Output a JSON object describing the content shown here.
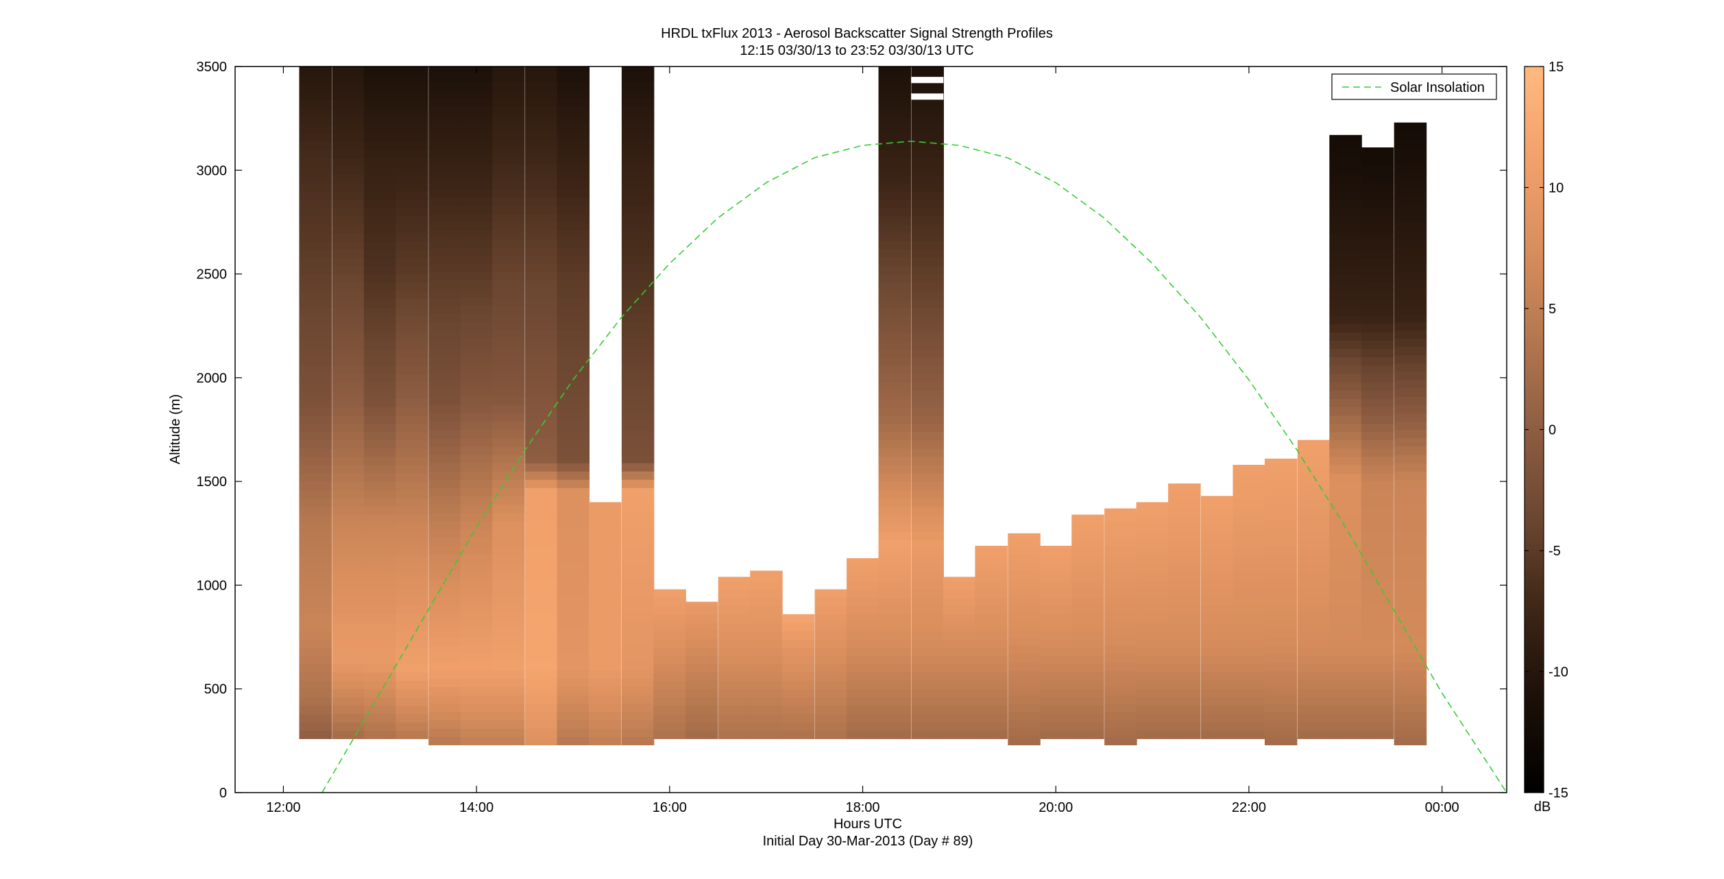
{
  "figure": {
    "title_line1": "HRDL txFlux 2013 - Aerosol Backscatter Signal Strength Profiles",
    "title_line2": "12:15 03/30/13 to 23:52 03/30/13  UTC",
    "xlabel": "Hours UTC",
    "xlabel_line2": "Initial Day 30-Mar-2013 (Day # 89)",
    "ylabel": "Altitude (m)",
    "legend_label": "Solar Insolation",
    "colorbar_unit": "dB"
  },
  "chart_data": {
    "type": "heatmap",
    "x_unit": "hours UTC (30-Mar-2013; values above 24 are after midnight)",
    "xlim": [
      11.5,
      24.67
    ],
    "ylim": [
      0,
      3500
    ],
    "xticks": [
      12,
      14,
      16,
      18,
      20,
      22,
      24
    ],
    "xtick_labels": [
      "12:00",
      "14:00",
      "16:00",
      "18:00",
      "20:00",
      "22:00",
      "00:00"
    ],
    "yticks": [
      0,
      500,
      1000,
      1500,
      2000,
      2500,
      3000,
      3500
    ],
    "ytick_labels": [
      "0",
      "500",
      "1000",
      "1500",
      "2000",
      "2500",
      "3000",
      "3500"
    ],
    "color_range": [
      -15,
      15
    ],
    "colorbar_ticks": [
      -15,
      -10,
      -5,
      0,
      5,
      10,
      15
    ],
    "colorbar_tick_labels": [
      "-15",
      "-10",
      "-5",
      "0",
      "5",
      "10",
      "15"
    ],
    "colormap": [
      "#000000",
      "#1a0f08",
      "#3d2516",
      "#6b4630",
      "#8e5d42",
      "#b4774f",
      "#d98e5d",
      "#f2a16b",
      "#ffb97e"
    ],
    "profile_width_hours": 0.333,
    "profiles": [
      {
        "time": 12.33,
        "top": 3500,
        "bottom": 260,
        "signal_db": [
          [
            260,
            0
          ],
          [
            450,
            3
          ],
          [
            800,
            6
          ],
          [
            1300,
            4
          ],
          [
            1900,
            -2
          ],
          [
            2600,
            -5
          ],
          [
            3100,
            -7
          ],
          [
            3500,
            -10
          ]
        ]
      },
      {
        "time": 12.67,
        "top": 3500,
        "bottom": 260,
        "signal_db": [
          [
            260,
            2
          ],
          [
            650,
            10
          ],
          [
            1300,
            6
          ],
          [
            1900,
            0
          ],
          [
            2500,
            -4
          ],
          [
            3000,
            -7
          ],
          [
            3500,
            -10
          ]
        ]
      },
      {
        "time": 13.0,
        "top": 3500,
        "bottom": 260,
        "signal_db": [
          [
            260,
            3
          ],
          [
            650,
            10
          ],
          [
            1300,
            6
          ],
          [
            1900,
            -2
          ],
          [
            2500,
            -6
          ],
          [
            3000,
            -8
          ],
          [
            3500,
            -11
          ]
        ]
      },
      {
        "time": 13.33,
        "top": 3500,
        "bottom": 260,
        "signal_db": [
          [
            260,
            4
          ],
          [
            600,
            11
          ],
          [
            1300,
            6
          ],
          [
            1900,
            0
          ],
          [
            2500,
            -5
          ],
          [
            3000,
            -8
          ],
          [
            3500,
            -11
          ]
        ]
      },
      {
        "time": 13.67,
        "top": 3500,
        "bottom": 230,
        "signal_db": [
          [
            230,
            4
          ],
          [
            600,
            11
          ],
          [
            1300,
            5
          ],
          [
            1900,
            -2
          ],
          [
            2500,
            -5
          ],
          [
            3000,
            -8
          ],
          [
            3500,
            -11
          ]
        ]
      },
      {
        "time": 14.0,
        "top": 3500,
        "bottom": 230,
        "signal_db": [
          [
            230,
            5
          ],
          [
            600,
            11
          ],
          [
            1300,
            6
          ],
          [
            1900,
            -1
          ],
          [
            2500,
            -5
          ],
          [
            3000,
            -8
          ],
          [
            3500,
            -11
          ]
        ]
      },
      {
        "time": 14.33,
        "top": 3500,
        "bottom": 230,
        "signal_db": [
          [
            230,
            5
          ],
          [
            600,
            11
          ],
          [
            1300,
            8
          ],
          [
            1900,
            -1
          ],
          [
            2500,
            -4
          ],
          [
            3000,
            -7
          ],
          [
            3500,
            -10
          ]
        ]
      },
      {
        "time": 14.67,
        "top": 3500,
        "bottom": 230,
        "signal_db": [
          [
            230,
            8
          ],
          [
            600,
            12
          ],
          [
            1450,
            11
          ],
          [
            1600,
            0
          ],
          [
            2500,
            -4
          ],
          [
            3000,
            -7
          ],
          [
            3500,
            -10
          ]
        ]
      },
      {
        "time": 15.0,
        "top": 3500,
        "bottom": 230,
        "signal_db": [
          [
            230,
            4
          ],
          [
            600,
            9
          ],
          [
            1450,
            8
          ],
          [
            1600,
            -2
          ],
          [
            2500,
            -5
          ],
          [
            3000,
            -8
          ],
          [
            3500,
            -11
          ]
        ]
      },
      {
        "time": 15.33,
        "top": 1400,
        "bottom": 230,
        "signal_db": [
          [
            230,
            5
          ],
          [
            600,
            10
          ],
          [
            1400,
            10
          ]
        ]
      },
      {
        "time": 15.67,
        "top": 3500,
        "bottom": 230,
        "signal_db": [
          [
            230,
            4
          ],
          [
            600,
            9
          ],
          [
            1450,
            11
          ],
          [
            1600,
            -2
          ],
          [
            2500,
            -6
          ],
          [
            3000,
            -8
          ],
          [
            3500,
            -11
          ]
        ]
      },
      {
        "time": 16.0,
        "top": 980,
        "bottom": 260,
        "signal_db": [
          [
            260,
            3
          ],
          [
            700,
            8
          ],
          [
            980,
            11
          ]
        ]
      },
      {
        "time": 16.33,
        "top": 920,
        "bottom": 260,
        "signal_db": [
          [
            260,
            2
          ],
          [
            700,
            7
          ],
          [
            920,
            10
          ]
        ]
      },
      {
        "time": 16.67,
        "top": 1040,
        "bottom": 260,
        "signal_db": [
          [
            260,
            3
          ],
          [
            700,
            8
          ],
          [
            1040,
            11
          ]
        ]
      },
      {
        "time": 17.0,
        "top": 1070,
        "bottom": 260,
        "signal_db": [
          [
            260,
            3
          ],
          [
            700,
            8
          ],
          [
            1070,
            11
          ]
        ]
      },
      {
        "time": 17.33,
        "top": 860,
        "bottom": 260,
        "signal_db": [
          [
            260,
            3
          ],
          [
            700,
            9
          ],
          [
            860,
            12
          ]
        ]
      },
      {
        "time": 17.67,
        "top": 980,
        "bottom": 260,
        "signal_db": [
          [
            260,
            3
          ],
          [
            700,
            8
          ],
          [
            980,
            11
          ]
        ]
      },
      {
        "time": 18.0,
        "top": 1130,
        "bottom": 260,
        "signal_db": [
          [
            260,
            2
          ],
          [
            700,
            7
          ],
          [
            1130,
            11
          ]
        ]
      },
      {
        "time": 18.33,
        "top": 3500,
        "bottom": 260,
        "signal_db": [
          [
            260,
            2
          ],
          [
            700,
            7
          ],
          [
            1200,
            11
          ],
          [
            1800,
            2
          ],
          [
            2400,
            -3
          ],
          [
            3000,
            -8
          ],
          [
            3500,
            -11
          ]
        ]
      },
      {
        "time": 18.67,
        "top": 3500,
        "bottom": 260,
        "signal_db": [
          [
            260,
            2
          ],
          [
            700,
            7
          ],
          [
            1200,
            10
          ],
          [
            1800,
            1
          ],
          [
            2400,
            -4
          ],
          [
            3000,
            -8
          ],
          [
            3500,
            -11
          ]
        ]
      },
      {
        "time": 19.0,
        "top": 1040,
        "bottom": 260,
        "signal_db": [
          [
            260,
            2
          ],
          [
            700,
            7
          ],
          [
            1040,
            11
          ]
        ]
      },
      {
        "time": 19.33,
        "top": 1190,
        "bottom": 260,
        "signal_db": [
          [
            260,
            2
          ],
          [
            700,
            7
          ],
          [
            1190,
            11
          ]
        ]
      },
      {
        "time": 19.67,
        "top": 1250,
        "bottom": 230,
        "signal_db": [
          [
            230,
            2
          ],
          [
            700,
            7
          ],
          [
            1250,
            11
          ]
        ]
      },
      {
        "time": 20.0,
        "top": 1190,
        "bottom": 260,
        "signal_db": [
          [
            260,
            2
          ],
          [
            700,
            7
          ],
          [
            1190,
            11
          ]
        ]
      },
      {
        "time": 20.33,
        "top": 1340,
        "bottom": 260,
        "signal_db": [
          [
            260,
            2
          ],
          [
            700,
            7
          ],
          [
            1340,
            11
          ]
        ]
      },
      {
        "time": 20.67,
        "top": 1370,
        "bottom": 230,
        "signal_db": [
          [
            230,
            2
          ],
          [
            700,
            7
          ],
          [
            1370,
            11
          ]
        ]
      },
      {
        "time": 21.0,
        "top": 1400,
        "bottom": 260,
        "signal_db": [
          [
            260,
            2
          ],
          [
            700,
            7
          ],
          [
            1400,
            11
          ]
        ]
      },
      {
        "time": 21.33,
        "top": 1490,
        "bottom": 260,
        "signal_db": [
          [
            260,
            2
          ],
          [
            700,
            7
          ],
          [
            1490,
            11
          ]
        ]
      },
      {
        "time": 21.67,
        "top": 1430,
        "bottom": 260,
        "signal_db": [
          [
            260,
            2
          ],
          [
            700,
            7
          ],
          [
            1430,
            11
          ]
        ]
      },
      {
        "time": 22.0,
        "top": 1580,
        "bottom": 260,
        "signal_db": [
          [
            260,
            2
          ],
          [
            700,
            7
          ],
          [
            1580,
            11
          ]
        ]
      },
      {
        "time": 22.33,
        "top": 1610,
        "bottom": 230,
        "signal_db": [
          [
            230,
            2
          ],
          [
            700,
            7
          ],
          [
            1610,
            11
          ]
        ]
      },
      {
        "time": 22.67,
        "top": 1700,
        "bottom": 260,
        "signal_db": [
          [
            260,
            2
          ],
          [
            700,
            7
          ],
          [
            1700,
            11
          ]
        ]
      },
      {
        "time": 23.0,
        "top": 3170,
        "bottom": 260,
        "signal_db": [
          [
            260,
            2
          ],
          [
            700,
            7
          ],
          [
            1500,
            8
          ],
          [
            1800,
            2
          ],
          [
            2300,
            -8
          ],
          [
            3170,
            -12
          ]
        ]
      },
      {
        "time": 23.33,
        "top": 3110,
        "bottom": 260,
        "signal_db": [
          [
            260,
            2
          ],
          [
            700,
            7
          ],
          [
            1500,
            6
          ],
          [
            1800,
            0
          ],
          [
            2300,
            -8
          ],
          [
            3110,
            -12
          ]
        ]
      },
      {
        "time": 23.67,
        "top": 3230,
        "bottom": 230,
        "signal_db": [
          [
            230,
            2
          ],
          [
            700,
            7
          ],
          [
            1500,
            6
          ],
          [
            1800,
            0
          ],
          [
            2300,
            -8
          ],
          [
            3230,
            -12
          ]
        ]
      }
    ],
    "missing_segments": [
      {
        "time": 18.67,
        "bottom": 3340,
        "top": 3370
      },
      {
        "time": 18.67,
        "bottom": 3420,
        "top": 3450
      }
    ],
    "series": [
      {
        "name": "Solar Insolation",
        "style": "dashed",
        "color": "#33cc33",
        "x": [
          12.4,
          13.0,
          13.5,
          14.0,
          14.5,
          15.0,
          15.5,
          16.0,
          16.5,
          17.0,
          17.5,
          18.0,
          18.5,
          19.0,
          19.5,
          20.0,
          20.5,
          21.0,
          21.5,
          22.0,
          22.5,
          23.0,
          23.5,
          24.0,
          24.67
        ],
        "y": [
          0,
          480,
          880,
          1280,
          1650,
          1990,
          2290,
          2550,
          2770,
          2940,
          3060,
          3120,
          3140,
          3120,
          3060,
          2940,
          2770,
          2550,
          2290,
          1990,
          1650,
          1280,
          880,
          480,
          0
        ]
      }
    ],
    "legend_position": "top-right",
    "grid": false
  }
}
